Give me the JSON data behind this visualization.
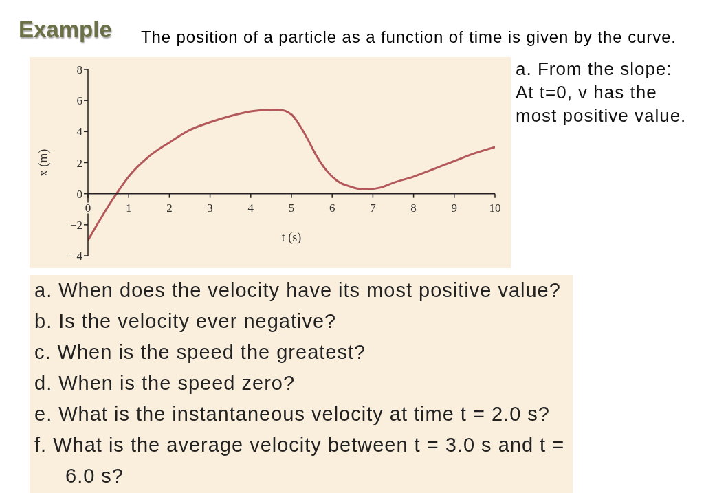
{
  "chart_data": {
    "type": "line",
    "title": "Example",
    "subtitle": "The position of a particle as a function of time is given by the curve.",
    "xlabel": "t (s)",
    "ylabel": "x (m)",
    "x": [
      0,
      0.2,
      0.5,
      0.7,
      1,
      1.5,
      2,
      2.5,
      3,
      3.5,
      4,
      4.5,
      4.7,
      5,
      5.2,
      5.4,
      5.6,
      5.8,
      6,
      6.2,
      6.4,
      6.7,
      6.9,
      7.2,
      7.5,
      8,
      8.5,
      9,
      9.5,
      10
    ],
    "series": [
      {
        "color": "#b3595b",
        "values": [
          -3,
          -2.1,
          -0.8,
          0,
          1.1,
          2.4,
          3.3,
          4.1,
          4.6,
          5,
          5.3,
          5.4,
          5.4,
          5.1,
          4.4,
          3.5,
          2.5,
          1.7,
          1.1,
          0.7,
          0.5,
          0.3,
          0.3,
          0.4,
          0.7,
          1.1,
          1.6,
          2.1,
          2.6,
          3
        ]
      }
    ],
    "xlim": [
      0,
      10
    ],
    "xticks": [
      0,
      1,
      2,
      3,
      4,
      5,
      6,
      7,
      8,
      9,
      10
    ],
    "ylim": [
      -4,
      8
    ],
    "yticks": [
      {
        "value": -4,
        "label": "−4"
      },
      {
        "value": -2,
        "label": "−2"
      },
      0,
      2,
      4,
      6,
      8
    ],
    "grid": false,
    "marker": "none",
    "line_style": "solid",
    "annotations": [
      "a. From the slope:\nAt t=0, v has the\nmost positive value.",
      "a. When does the velocity have its most positive value?",
      "b. Is the velocity ever negative?",
      "c. When is the speed the greatest?",
      "d. When is the speed zero?",
      "e. What is the instantaneous velocity at time t = 2.0 s?",
      "f. What is the average velocity between t = 3.0 s and t = 6.0 s?"
    ]
  }
}
